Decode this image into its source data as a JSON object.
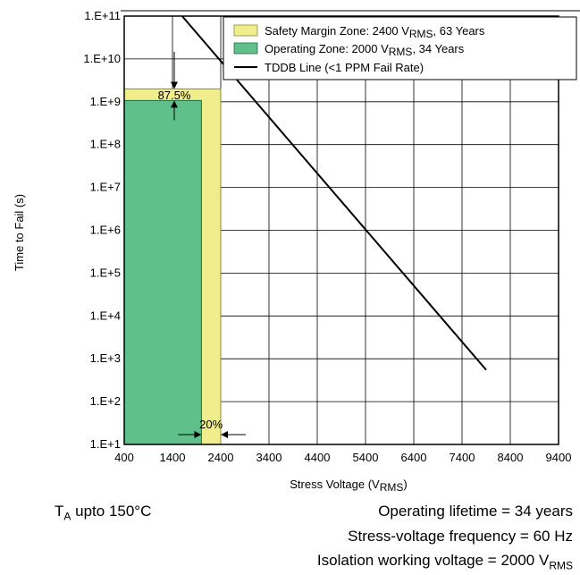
{
  "chart_data": {
    "type": "area",
    "xlabel": "Stress Voltage",
    "xlabel_sub": "RMS",
    "xlabel_suffix": ")",
    "ylabel": "Time to Fail (s)",
    "xlim": [
      400,
      9400
    ],
    "x_ticks": [
      400,
      1400,
      2400,
      3400,
      4400,
      5400,
      6400,
      7400,
      8400,
      9400
    ],
    "y_scale": "log",
    "ylim": [
      10,
      100000000000
    ],
    "y_ticks": [
      {
        "value": 10,
        "label": "1.E+1"
      },
      {
        "value": 100,
        "label": "1.E+2"
      },
      {
        "value": 1000,
        "label": "1.E+3"
      },
      {
        "value": 10000,
        "label": "1.E+4"
      },
      {
        "value": 100000,
        "label": "1.E+5"
      },
      {
        "value": 1000000,
        "label": "1.E+6"
      },
      {
        "value": 10000000,
        "label": "1.E+7"
      },
      {
        "value": 100000000,
        "label": "1.E+8"
      },
      {
        "value": 1000000000,
        "label": "1.E+9"
      },
      {
        "value": 10000000000,
        "label": "1.E+10"
      },
      {
        "value": 100000000000,
        "label": "1.E+11"
      }
    ],
    "grid": true,
    "series": [
      {
        "name_main": "Safety Margin Zone: 2400 V",
        "name_sub": "RMS",
        "name_tail": ", 63 Years",
        "kind": "zone",
        "x_end": 2400,
        "y_top": 1990000000,
        "color": "#f0ee8c"
      },
      {
        "name_main": "Operating Zone: 2000 V",
        "name_sub": "RMS",
        "name_tail": ", 34 Years",
        "kind": "zone",
        "x_end": 2000,
        "y_top": 1070000000,
        "color": "#5fc08a"
      },
      {
        "name_main": "TDDB Line (<1 PPM Fail Rate)",
        "name_sub": "",
        "name_tail": "",
        "kind": "line",
        "x": [
          1600,
          7900
        ],
        "y": [
          100000000000,
          550
        ],
        "color": "#000000"
      }
    ],
    "legend_position": "top-right",
    "annotations": [
      {
        "text": "87.5%",
        "kind": "vertical-gap"
      },
      {
        "text": "20%",
        "kind": "horizontal-gap"
      }
    ]
  },
  "footer": {
    "ta_prefix": "T",
    "ta_sub": "A",
    "ta_text": " upto 150°C",
    "lifetime": "Operating lifetime = 34 years",
    "frequency": "Stress-voltage frequency = 60 Hz",
    "isolation_prefix": "Isolation working voltage = 2000 V",
    "isolation_sub": "RMS"
  }
}
